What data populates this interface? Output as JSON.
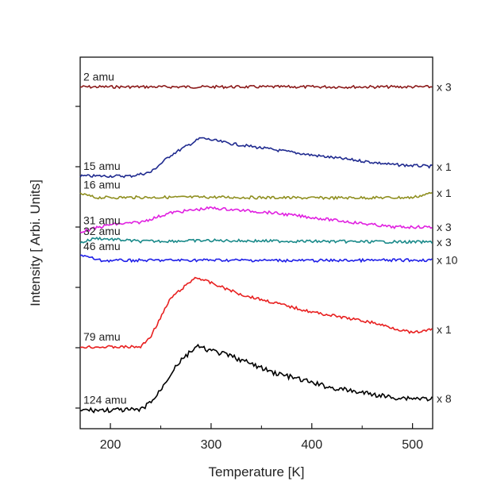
{
  "chart_data": {
    "type": "line",
    "xlabel": "Temperature [K]",
    "ylabel": "Intensity [ Arbi. Units]",
    "xlim": [
      170,
      520
    ],
    "xticks": [
      200,
      300,
      400,
      500
    ],
    "y_ticks_labeled": false,
    "grid": false,
    "series": [
      {
        "name": "2 amu",
        "multiplier": "x 3",
        "color": "#8b1a1a",
        "level": 0.92,
        "points": [
          [
            170,
            0
          ],
          [
            520,
            0
          ]
        ]
      },
      {
        "name": "15 amu",
        "multiplier": "x 1",
        "color": "#1f2a8f",
        "level": 0.68,
        "points": [
          [
            170,
            0
          ],
          [
            220,
            0
          ],
          [
            240,
            0.1
          ],
          [
            260,
            0.55
          ],
          [
            290,
            1.0
          ],
          [
            320,
            0.85
          ],
          [
            400,
            0.55
          ],
          [
            480,
            0.3
          ],
          [
            520,
            0.25
          ]
        ]
      },
      {
        "name": "16 amu",
        "multiplier": "x 1",
        "color": "#8f8f20",
        "level": 0.62,
        "points": [
          [
            170,
            0.6
          ],
          [
            185,
            0.1
          ],
          [
            300,
            0.15
          ],
          [
            400,
            0.05
          ],
          [
            500,
            0.1
          ],
          [
            520,
            0.7
          ]
        ]
      },
      {
        "name": "31 amu",
        "multiplier": "x 3",
        "color": "#e020e0",
        "level": 0.53,
        "points": [
          [
            170,
            0
          ],
          [
            200,
            0.3
          ],
          [
            230,
            0.4
          ],
          [
            260,
            0.8
          ],
          [
            300,
            1.0
          ],
          [
            360,
            0.8
          ],
          [
            420,
            0.5
          ],
          [
            480,
            0.2
          ],
          [
            520,
            0.2
          ]
        ]
      },
      {
        "name": "32 amu",
        "multiplier": "x 3",
        "color": "#1a8a8a",
        "level": 0.5,
        "points": [
          [
            170,
            0
          ],
          [
            185,
            0.6
          ],
          [
            230,
            0.2
          ],
          [
            300,
            0.3
          ],
          [
            400,
            0.2
          ],
          [
            520,
            0.1
          ]
        ]
      },
      {
        "name": "46 amu",
        "multiplier": "x 10",
        "color": "#2020e8",
        "level": 0.45,
        "points": [
          [
            170,
            0.7
          ],
          [
            190,
            0.1
          ],
          [
            300,
            0.15
          ],
          [
            400,
            0.1
          ],
          [
            520,
            0.15
          ]
        ]
      },
      {
        "name": "79 amu",
        "multiplier": "x 1",
        "color": "#e82020",
        "level": 0.22,
        "points": [
          [
            170,
            0
          ],
          [
            230,
            0
          ],
          [
            240,
            0.15
          ],
          [
            260,
            0.7
          ],
          [
            285,
            1.0
          ],
          [
            330,
            0.75
          ],
          [
            400,
            0.5
          ],
          [
            460,
            0.35
          ],
          [
            500,
            0.2
          ],
          [
            520,
            0.25
          ]
        ]
      },
      {
        "name": "124 amu",
        "multiplier": "x 8",
        "color": "#000000",
        "level": 0.05,
        "points": [
          [
            170,
            0
          ],
          [
            230,
            0
          ],
          [
            245,
            0.2
          ],
          [
            265,
            0.7
          ],
          [
            285,
            1.0
          ],
          [
            320,
            0.85
          ],
          [
            360,
            0.6
          ],
          [
            420,
            0.35
          ],
          [
            480,
            0.2
          ],
          [
            520,
            0.18
          ]
        ]
      }
    ]
  }
}
